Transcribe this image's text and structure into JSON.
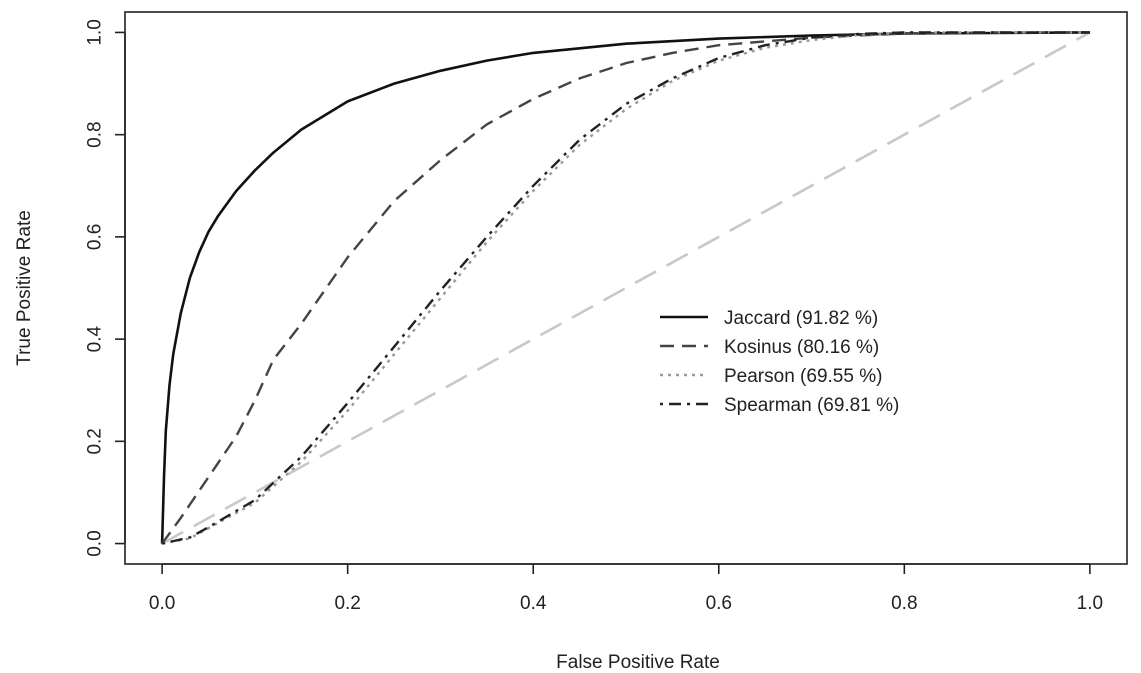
{
  "chart_data": {
    "type": "line",
    "xlabel": "False Positive Rate",
    "ylabel": "True Positive Rate",
    "xlim": [
      -0.04,
      1.04
    ],
    "ylim": [
      -0.04,
      1.04
    ],
    "x_ticks": [
      "0.0",
      "0.2",
      "0.4",
      "0.6",
      "0.8",
      "1.0"
    ],
    "y_ticks": [
      "0.0",
      "0.2",
      "0.4",
      "0.6",
      "0.8",
      "1.0"
    ],
    "grid": false,
    "legend_position": "center-right",
    "series": [
      {
        "name": "Jaccard (91.82 %)",
        "color": "#111111",
        "dash": "solid",
        "points": [
          [
            0,
            0
          ],
          [
            0.002,
            0.13
          ],
          [
            0.004,
            0.22
          ],
          [
            0.008,
            0.31
          ],
          [
            0.012,
            0.37
          ],
          [
            0.02,
            0.45
          ],
          [
            0.03,
            0.52
          ],
          [
            0.04,
            0.57
          ],
          [
            0.05,
            0.61
          ],
          [
            0.06,
            0.64
          ],
          [
            0.08,
            0.69
          ],
          [
            0.1,
            0.73
          ],
          [
            0.12,
            0.765
          ],
          [
            0.15,
            0.81
          ],
          [
            0.2,
            0.865
          ],
          [
            0.25,
            0.9
          ],
          [
            0.3,
            0.925
          ],
          [
            0.35,
            0.945
          ],
          [
            0.4,
            0.96
          ],
          [
            0.5,
            0.978
          ],
          [
            0.6,
            0.988
          ],
          [
            0.7,
            0.994
          ],
          [
            0.8,
            0.998
          ],
          [
            0.9,
            0.999
          ],
          [
            1,
            1
          ]
        ]
      },
      {
        "name": "Kosinus (80.16 %)",
        "color": "#444444",
        "dash": "dashed",
        "points": [
          [
            0,
            0
          ],
          [
            0.02,
            0.05
          ],
          [
            0.05,
            0.13
          ],
          [
            0.08,
            0.21
          ],
          [
            0.1,
            0.28
          ],
          [
            0.12,
            0.36
          ],
          [
            0.15,
            0.43
          ],
          [
            0.2,
            0.56
          ],
          [
            0.25,
            0.67
          ],
          [
            0.3,
            0.75
          ],
          [
            0.35,
            0.82
          ],
          [
            0.4,
            0.87
          ],
          [
            0.45,
            0.91
          ],
          [
            0.5,
            0.94
          ],
          [
            0.55,
            0.96
          ],
          [
            0.6,
            0.975
          ],
          [
            0.7,
            0.99
          ],
          [
            0.8,
            0.998
          ],
          [
            0.9,
            1
          ],
          [
            1,
            1
          ]
        ]
      },
      {
        "name": "Pearson (69.55 %)",
        "color": "#999999",
        "dash": "dotted",
        "points": [
          [
            0,
            0
          ],
          [
            0.03,
            0.01
          ],
          [
            0.05,
            0.03
          ],
          [
            0.1,
            0.08
          ],
          [
            0.15,
            0.16
          ],
          [
            0.2,
            0.26
          ],
          [
            0.25,
            0.37
          ],
          [
            0.3,
            0.48
          ],
          [
            0.35,
            0.59
          ],
          [
            0.4,
            0.69
          ],
          [
            0.45,
            0.78
          ],
          [
            0.5,
            0.85
          ],
          [
            0.55,
            0.905
          ],
          [
            0.6,
            0.945
          ],
          [
            0.65,
            0.97
          ],
          [
            0.7,
            0.985
          ],
          [
            0.75,
            0.995
          ],
          [
            0.8,
            1
          ],
          [
            1,
            1
          ]
        ]
      },
      {
        "name": "Spearman (69.81 %)",
        "color": "#222222",
        "dash": "dotdash",
        "points": [
          [
            0,
            0
          ],
          [
            0.03,
            0.012
          ],
          [
            0.05,
            0.032
          ],
          [
            0.1,
            0.085
          ],
          [
            0.15,
            0.17
          ],
          [
            0.2,
            0.275
          ],
          [
            0.25,
            0.385
          ],
          [
            0.3,
            0.495
          ],
          [
            0.35,
            0.6
          ],
          [
            0.4,
            0.7
          ],
          [
            0.45,
            0.79
          ],
          [
            0.5,
            0.86
          ],
          [
            0.55,
            0.91
          ],
          [
            0.6,
            0.95
          ],
          [
            0.65,
            0.975
          ],
          [
            0.7,
            0.99
          ],
          [
            0.75,
            0.997
          ],
          [
            0.8,
            1
          ],
          [
            1,
            1
          ]
        ]
      },
      {
        "color": "#c8c8c8",
        "dash": "longdash",
        "points": [
          [
            0,
            0
          ],
          [
            1,
            1
          ]
        ]
      }
    ]
  }
}
